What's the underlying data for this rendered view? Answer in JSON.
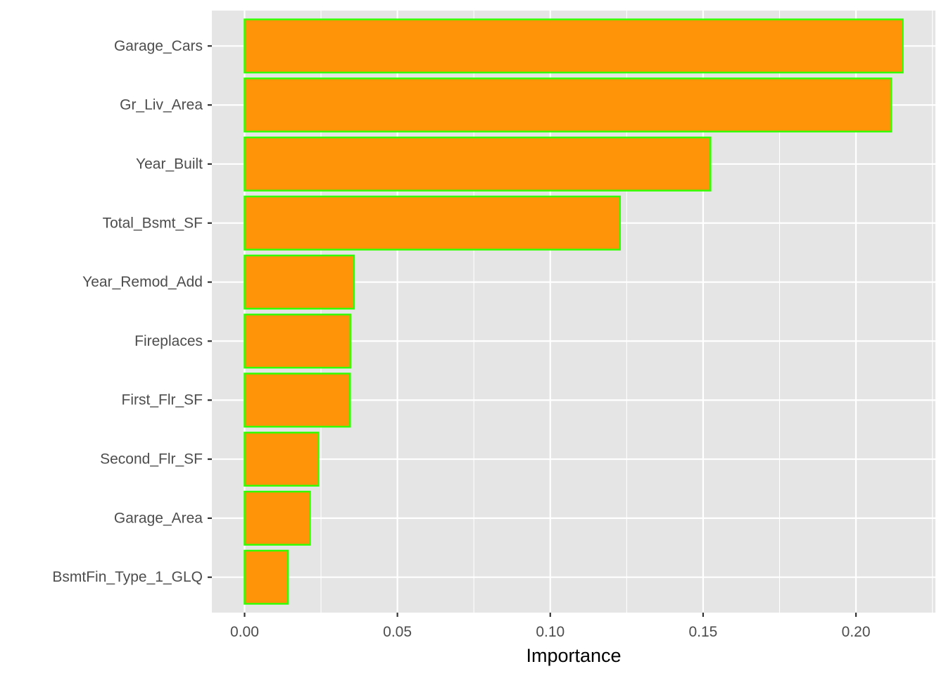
{
  "chart_data": {
    "type": "bar",
    "orientation": "horizontal",
    "categories": [
      "Garage_Cars",
      "Gr_Liv_Area",
      "Year_Built",
      "Total_Bsmt_SF",
      "Year_Remod_Add",
      "Fireplaces",
      "First_Flr_SF",
      "Second_Flr_SF",
      "Garage_Area",
      "BsmtFin_Type_1_GLQ"
    ],
    "values": [
      0.2153,
      0.2115,
      0.1524,
      0.1228,
      0.0358,
      0.0346,
      0.0345,
      0.0241,
      0.0214,
      0.0142
    ],
    "xlabel": "Importance",
    "ylabel": "",
    "xlim": [
      -0.0107,
      0.226
    ],
    "xticks": [
      0.0,
      0.05,
      0.1,
      0.15,
      0.2
    ],
    "xtick_labels": [
      "0.00",
      "0.05",
      "0.10",
      "0.15",
      "0.20"
    ],
    "grid": true,
    "legend": "none",
    "colors": {
      "bar_fill": "#ff9408",
      "bar_outline": "#33ff00",
      "panel_background": "#e5e5e5",
      "grid": "#ffffff",
      "tick_label": "#4d4d4d",
      "axis_title": "#000000"
    }
  }
}
